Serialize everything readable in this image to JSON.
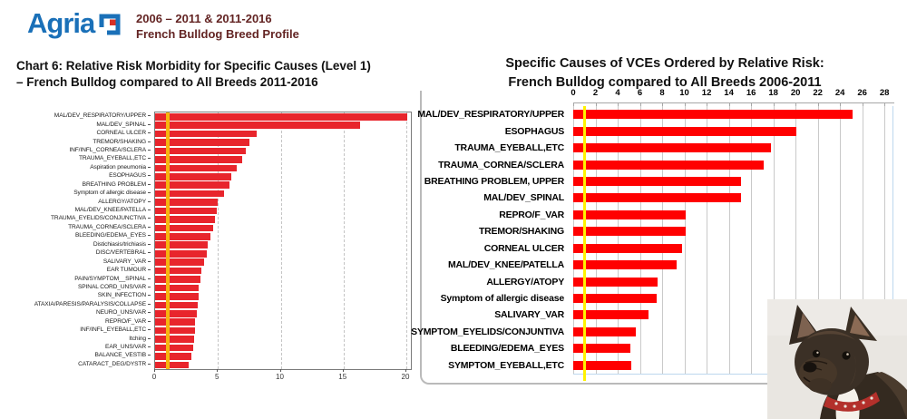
{
  "header": {
    "logo_text": "Agria",
    "period": "2006 – 2011 & 2011-2016",
    "subtitle": "French Bulldog Breed Profile"
  },
  "left_panel": {
    "title_line1": "Chart 6: Relative Risk Morbidity for Specific Causes (Level 1)",
    "title_line2": "–  French Bulldog compared to All Breeds 2011-2016"
  },
  "right_panel": {
    "title_line1": "Specific Causes of VCEs Ordered by Relative Risk:",
    "title_line2": "French Bulldog compared to All Breeds 2006-2011"
  },
  "dog_photo": {
    "alt": "French Bulldog photo"
  },
  "colors": {
    "agria_blue": "#1a70b8",
    "agria_red": "#d93025",
    "header_text": "#632423",
    "left_bar_red": "#e8252c",
    "left_reference_gold": "#f6b40f",
    "right_bar_red": "#ff0000",
    "right_reference_yellow": "#fff200",
    "gridline_gray": "#c9c9c9",
    "plot_edge_blue": "#bdd7ee"
  },
  "chart_data": [
    {
      "type": "bar",
      "orientation": "horizontal",
      "title": "Chart 6: Relative Risk Morbidity for Specific Causes (Level 1) – French Bulldog compared to All Breeds 2011-2016",
      "xlabel": "",
      "ylabel": "",
      "xlim": [
        0,
        20.36
      ],
      "xticks": [
        0,
        5,
        10,
        15,
        20
      ],
      "gridlines": [
        5,
        10,
        15,
        20
      ],
      "reference_line_x": 1,
      "grid": "dashed",
      "categories": [
        "MAL/DEV_RESPIRATORY/UPPER",
        "MAL/DEV_SPINAL",
        "CORNEAL ULCER",
        "TREMOR/SHAKING",
        "INF/INFL_CORNEA/SCLERA",
        "TRAUMA_EYEBALL,ETC",
        "Aspiration pneumonia",
        "ESOPHAGUS",
        "BREATHING PROBLEM",
        "Symptom of allergic disease",
        "ALLERGY/ATOPY",
        "MAL/DEV_KNEE/PATELLA",
        "TRAUMA_EYELIDS/CONJUNCTIVA",
        "TRAUMA_CORNEA/SCLERA",
        "BLEEDING/EDEMA_EYES",
        "Distichiasis/trichiasis",
        "DISC/VERTEBRAL",
        "SALIVARY_VAR",
        "EAR TUMOUR",
        "PAIN/SYMPTOM__SPINAL",
        "SPINAL CORD_UNS/VAR",
        "SKIN_INFECTION",
        "ATAXIA/PARESIS/PARALYSIS/COLLAPSE",
        "NEURO_UNS/VAR",
        "REPRO/F_VAR",
        "INF/INFL_EYEBALL,ETC",
        "Itching",
        "EAR_UNS/VAR",
        "BALANCE_VESTIB",
        "CATARACT_DEG/DYSTR"
      ],
      "values": [
        20.1,
        16.3,
        8.1,
        7.5,
        7.2,
        6.9,
        6.5,
        6.1,
        5.9,
        5.5,
        5.0,
        4.9,
        4.8,
        4.6,
        4.4,
        4.2,
        4.1,
        3.9,
        3.7,
        3.6,
        3.5,
        3.45,
        3.4,
        3.3,
        3.2,
        3.15,
        3.1,
        3.0,
        2.9,
        2.7
      ]
    },
    {
      "type": "bar",
      "orientation": "horizontal",
      "title": "Specific Causes of VCEs Ordered by Relative Risk: French Bulldog compared to All Breeds 2006-2011",
      "xlabel": "",
      "ylabel": "",
      "xlim": [
        0,
        28.8
      ],
      "xticks": [
        0,
        2,
        4,
        6,
        8,
        10,
        12,
        14,
        16,
        18,
        20,
        22,
        24,
        26,
        28
      ],
      "gridlines": [
        0,
        2,
        4,
        6,
        8,
        10,
        12,
        14,
        16,
        18,
        20,
        22,
        24,
        26,
        28
      ],
      "reference_line_x": 1,
      "grid": "solid",
      "axis_position": "top",
      "categories": [
        "MAL/DEV_RESPIRATORY/UPPER",
        "ESOPHAGUS",
        "TRAUMA_EYEBALL,ETC",
        "TRAUMA_CORNEA/SCLERA",
        "BREATHING PROBLEM, UPPER",
        "MAL/DEV_SPINAL",
        "REPRO/F_VAR",
        "TREMOR/SHAKING",
        "CORNEAL ULCER",
        "MAL/DEV_KNEE/PATELLA",
        "ALLERGY/ATOPY",
        "Symptom of allergic disease",
        "SALIVARY_VAR",
        "SYMPTOM_EYELIDS/CONJUNTIVA",
        "BLEEDING/EDEMA_EYES",
        "SYMPTOM_EYEBALL,ETC"
      ],
      "values": [
        25.1,
        20.1,
        17.8,
        17.1,
        15.1,
        15.1,
        10.1,
        10.1,
        9.8,
        9.3,
        7.6,
        7.5,
        6.8,
        5.6,
        5.1,
        5.2
      ]
    }
  ]
}
